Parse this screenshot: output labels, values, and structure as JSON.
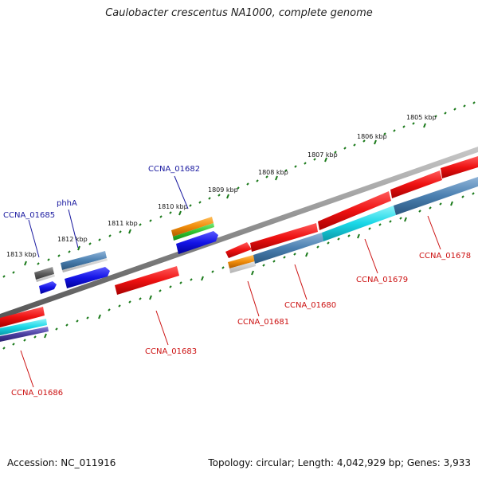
{
  "title": "Caulobacter crescentus NA1000, complete genome",
  "footer": {
    "accession": "Accession: NC_011916",
    "topology": "Topology: circular; Length: 4,042,929 bp; Genes: 3,933"
  },
  "colors": {
    "backbone": "#8a8a8a",
    "ticks": "#1a7a1a",
    "forward_label": "#1a1aa0",
    "reverse_label": "#cc1111",
    "cds_red": "#ee1111",
    "cds_steel": "#4a7fb0",
    "cds_blue": "#1414e6",
    "cds_cyan": "#19d7e6",
    "cds_orange": "#f08c0a",
    "cds_green": "#2ec42e",
    "cds_grey": "#606060",
    "cds_purple": "#4b3fa0"
  },
  "scale_labels": [
    "1813 kbp",
    "1812 kbp",
    "1811 kbp",
    "1810 kbp",
    "1809 kbp",
    "1808 kbp",
    "1807 kbp",
    "1806 kbp",
    "1805 kbp"
  ],
  "gene_labels": [
    {
      "id": "CCNA_01685",
      "strand": "forward"
    },
    {
      "id": "phhA",
      "strand": "forward"
    },
    {
      "id": "CCNA_01682",
      "strand": "forward"
    },
    {
      "id": "CCNA_01686",
      "strand": "reverse"
    },
    {
      "id": "CCNA_01683",
      "strand": "reverse"
    },
    {
      "id": "CCNA_01681",
      "strand": "reverse"
    },
    {
      "id": "CCNA_01680",
      "strand": "reverse"
    },
    {
      "id": "CCNA_01679",
      "strand": "reverse"
    },
    {
      "id": "CCNA_01678",
      "strand": "reverse"
    }
  ]
}
